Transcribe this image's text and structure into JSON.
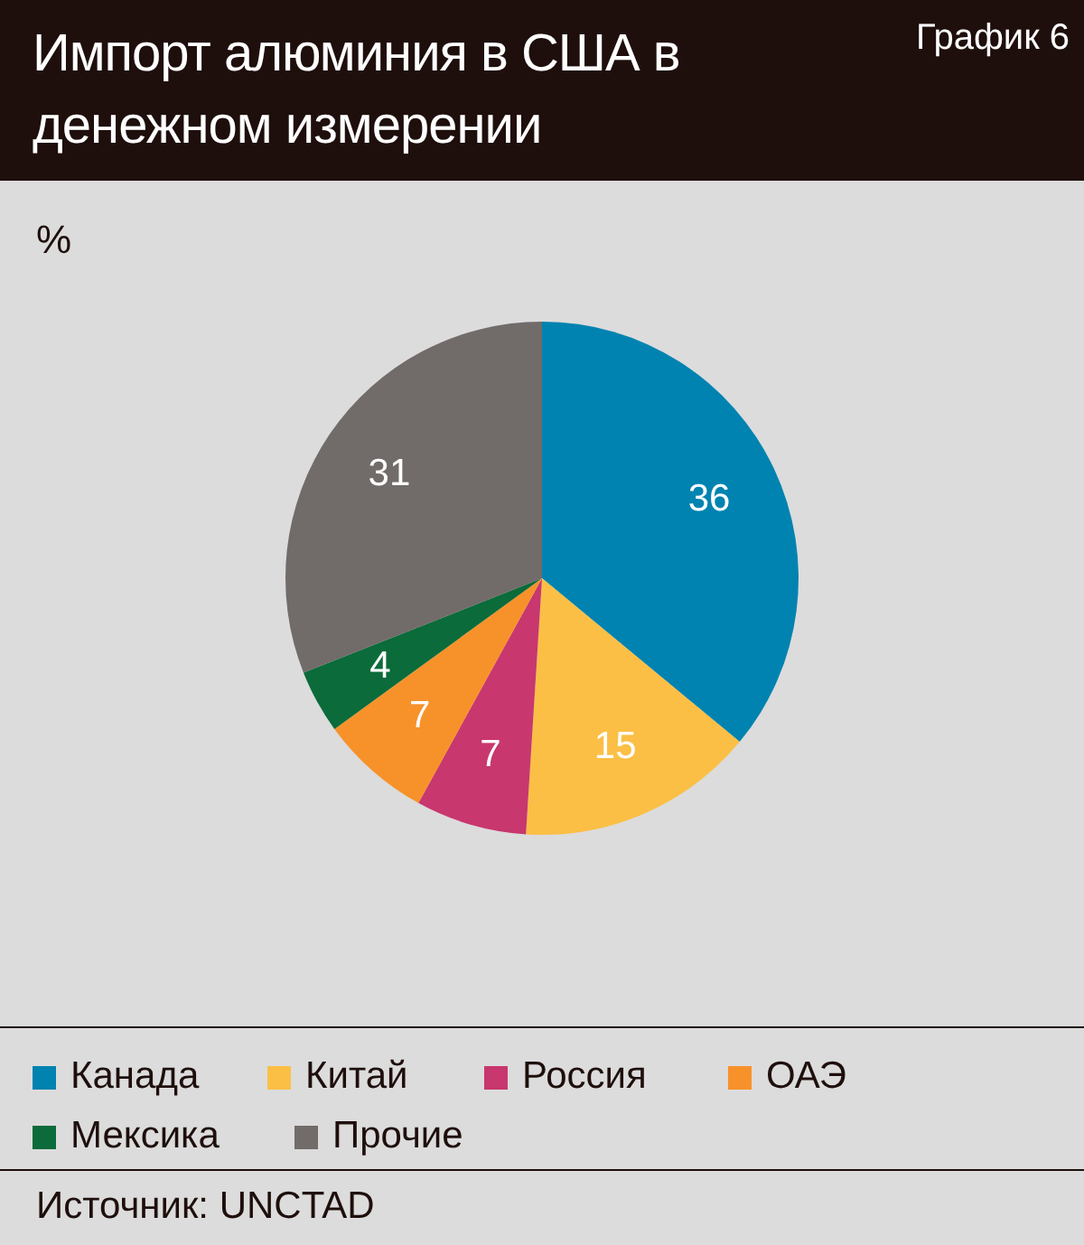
{
  "chart_data": {
    "type": "pie",
    "title": "Импорт алюминия в США в денежном измерении",
    "subtitle": "%",
    "annotations": [
      "График 6",
      "Источник: UNCTAD"
    ],
    "categories": [
      "Канада",
      "Китай",
      "Россия",
      "ОАЭ",
      "Мексика",
      "Прочие"
    ],
    "values": [
      36,
      15,
      7,
      7,
      4,
      31
    ],
    "colors": [
      "#0083b0",
      "#fbbf45",
      "#c8376e",
      "#f7922a",
      "#0b6b3a",
      "#716b69"
    ],
    "data_labels": true,
    "legend": "bottom"
  }
}
